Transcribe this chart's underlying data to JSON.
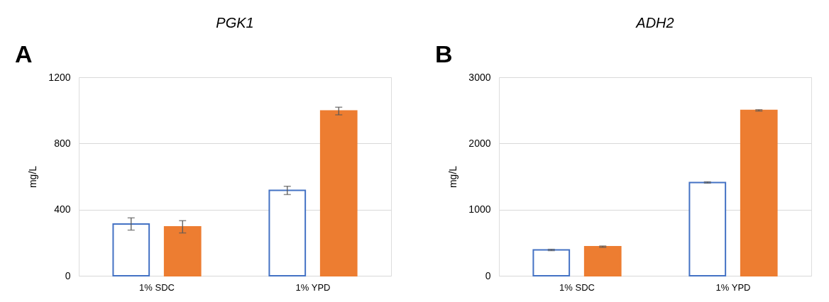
{
  "chart_data": [
    {
      "type": "bar",
      "title": "PGK1",
      "ylabel": "mg/L",
      "annotations": [
        "A"
      ],
      "categories": [
        "1% SDC",
        "1% YPD"
      ],
      "ylim": [
        0,
        1200
      ],
      "yticks": [
        0,
        400,
        800,
        1200
      ],
      "grid": "y",
      "series": [
        {
          "color": "#4472c4",
          "values": [
            313,
            516
          ],
          "errors": [
            37,
            25
          ]
        },
        {
          "color": "#ed7d31",
          "values": [
            296,
            996
          ],
          "errors": [
            37,
            23
          ]
        }
      ]
    },
    {
      "type": "bar",
      "title": "ADH2",
      "ylabel": "mg/L",
      "annotations": [
        "B"
      ],
      "categories": [
        "1% SDC",
        "1% YPD"
      ],
      "ylim": [
        0,
        3000
      ],
      "yticks": [
        0,
        1000,
        2000,
        3000
      ],
      "grid": "y",
      "series": [
        {
          "color": "#4472c4",
          "values": [
            390,
            1410
          ],
          "errors": [
            10,
            10
          ]
        },
        {
          "color": "#ed7d31",
          "values": [
            440,
            2500
          ],
          "errors": [
            10,
            10
          ]
        }
      ]
    }
  ]
}
